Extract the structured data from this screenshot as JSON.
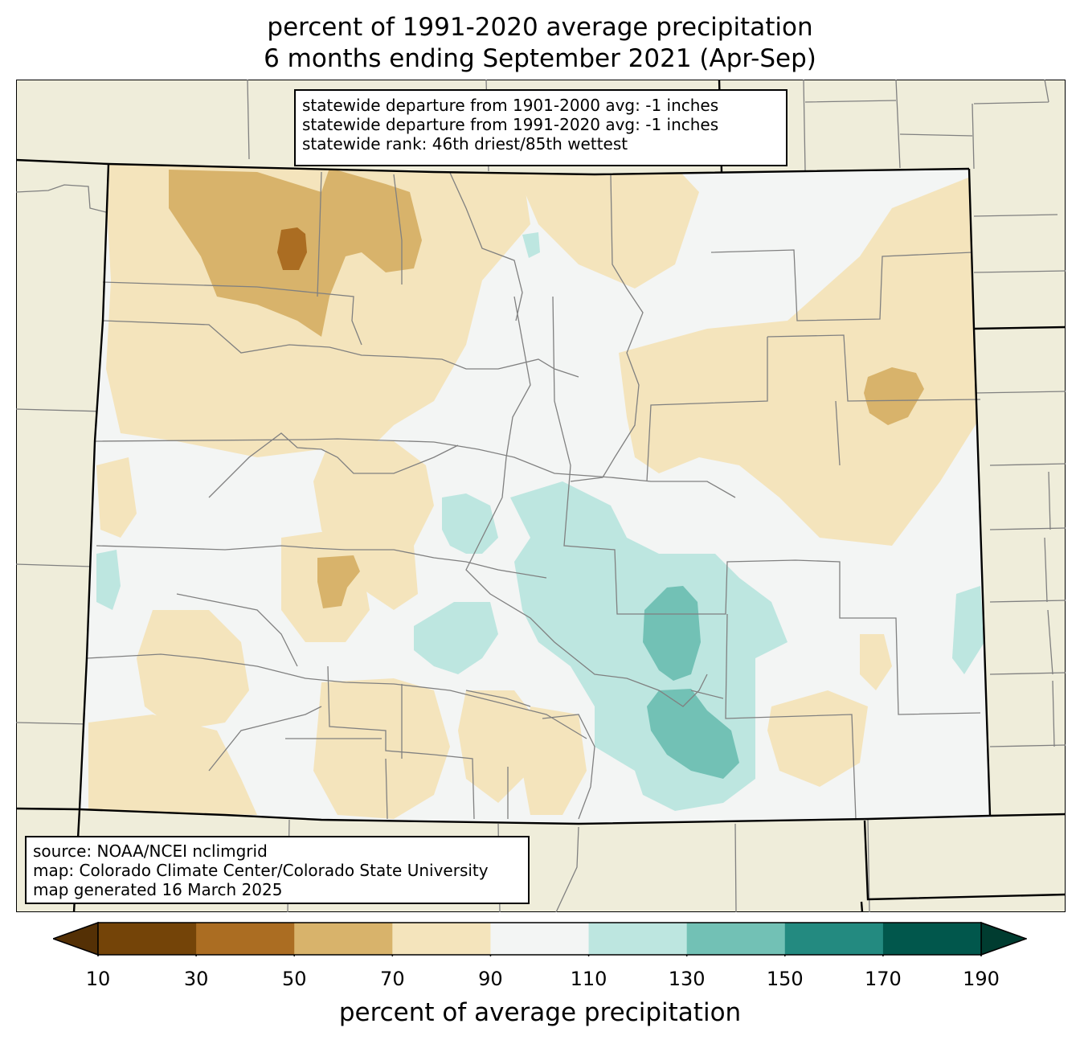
{
  "title_line1": "percent of 1991-2020 average precipitation",
  "title_line2": "6 months ending September 2021 (Apr-Sep)",
  "stats": [
    "statewide departure from 1901-2000 avg: -1 inches",
    "statewide departure from 1991-2020 avg: -1 inches",
    "statewide rank: 46th driest/85th wettest"
  ],
  "source": [
    "source: NOAA/NCEI nclimgrid",
    "map: Colorado Climate Center/Colorado State University",
    "map generated 16 March 2025"
  ],
  "colorbar": {
    "label": "percent of average precipitation",
    "ticks": [
      "10",
      "30",
      "50",
      "70",
      "90",
      "110",
      "130",
      "150",
      "170",
      "190"
    ],
    "under_color": "#543005",
    "over_color": "#003c30",
    "bins": [
      {
        "range": "10-30",
        "color": "#744408"
      },
      {
        "range": "30-50",
        "color": "#ab6d22"
      },
      {
        "range": "50-70",
        "color": "#d8b36b"
      },
      {
        "range": "70-90",
        "color": "#f4e4bc"
      },
      {
        "range": "90-110",
        "color": "#f3f5f4"
      },
      {
        "range": "110-130",
        "color": "#bde6e0"
      },
      {
        "range": "130-150",
        "color": "#72c1b5"
      },
      {
        "range": "150-170",
        "color": "#238a80"
      },
      {
        "range": "170-190",
        "color": "#01574c"
      }
    ]
  },
  "colors": {
    "outside_land": "#efedda",
    "county_lines": "#808080",
    "state_border": "#000000"
  }
}
